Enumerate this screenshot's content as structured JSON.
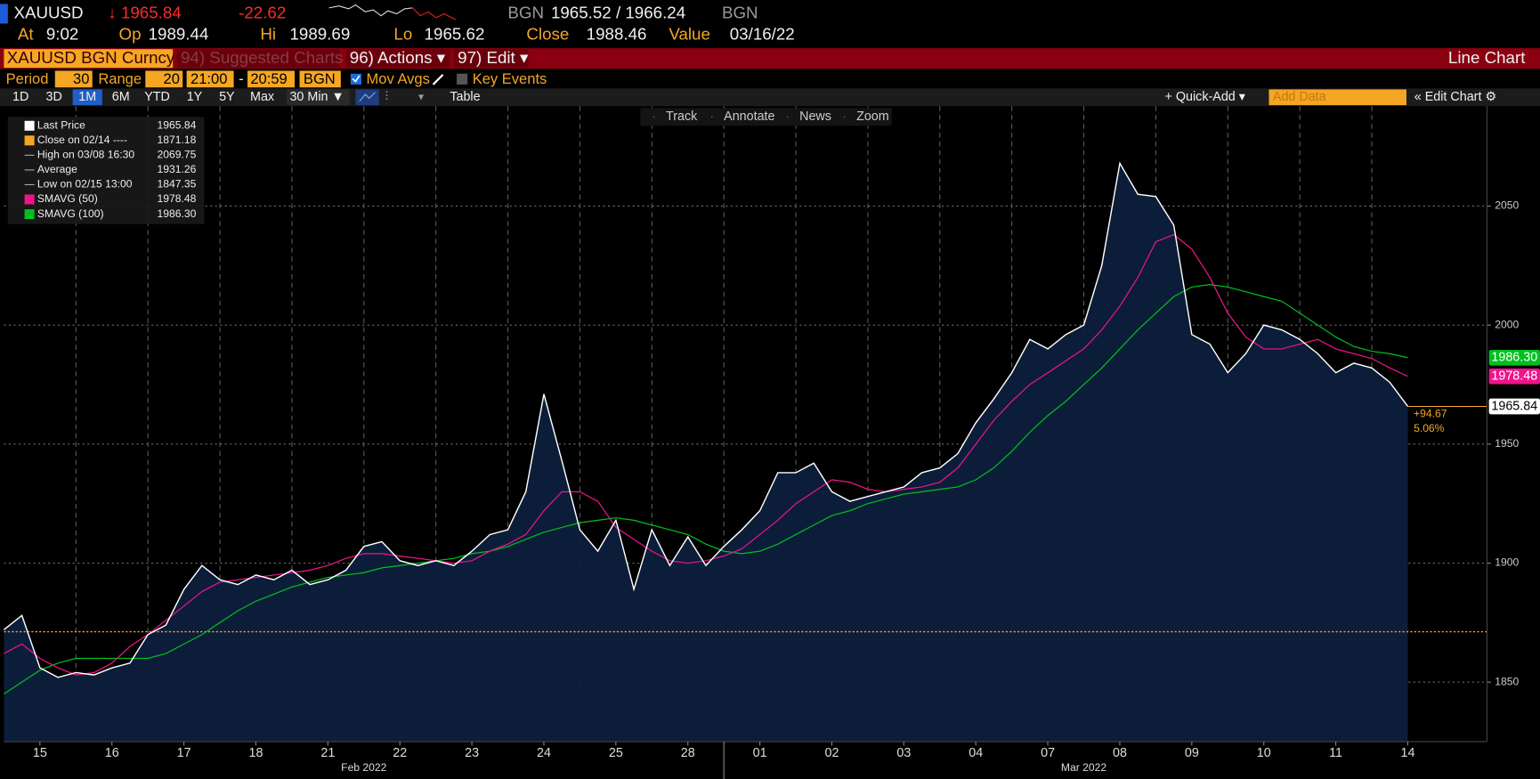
{
  "header": {
    "ticker": "XAUUSD",
    "last": "↓ 1965.84",
    "change": "-22.62",
    "source1": "BGN",
    "bid_ask": "1965.52 / 1966.24",
    "source2": "BGN",
    "stats": [
      {
        "label": "At",
        "value": "9:02"
      },
      {
        "label": "Op",
        "value": "1989.44"
      },
      {
        "label": "Hi",
        "value": "1989.69"
      },
      {
        "label": "Lo",
        "value": "1965.62"
      },
      {
        "label": "Close",
        "value": "1988.46"
      },
      {
        "label": "Value",
        "value": "03/16/22"
      }
    ]
  },
  "menu": {
    "security": "XAUUSD BGN Curncy",
    "suggested": "94) Suggested Charts",
    "actions": "96) Actions ▾",
    "edit": "97) Edit ▾",
    "chart_type": "Line Chart"
  },
  "settings": {
    "period_label": "Period",
    "period": "30",
    "range_label": "Range",
    "range": "20",
    "start": "21:00",
    "dash": "-",
    "end": "20:59",
    "source": "BGN",
    "mov_avgs": "Mov Avgs",
    "key_events": "Key Events"
  },
  "toolbar": {
    "ranges": [
      "1D",
      "3D",
      "1M",
      "6M",
      "YTD",
      "1Y",
      "5Y",
      "Max"
    ],
    "active_range": 2,
    "interval": "30 Min ▼",
    "table": "Table",
    "quick_add": "+ Quick-Add ▾",
    "add_data": "Add Data",
    "edit_chart": "« Edit Chart ⚙"
  },
  "chart_tools": [
    "Track",
    "Annotate",
    "News",
    "Zoom"
  ],
  "chart_data": {
    "type": "line",
    "x": [
      0,
      0.25,
      0.5,
      0.75,
      1,
      1.25,
      1.5,
      1.75,
      2,
      2.25,
      2.5,
      2.75,
      3,
      3.25,
      3.5,
      3.75,
      4,
      4.25,
      4.5,
      4.75,
      5,
      5.25,
      5.5,
      5.75,
      6,
      6.25,
      6.5,
      6.75,
      7,
      7.25,
      7.5,
      7.75,
      8,
      8.25,
      8.5,
      8.75,
      9,
      9.25,
      9.5,
      9.75,
      10,
      10.25,
      10.5,
      10.75,
      11,
      11.25,
      11.5,
      11.75,
      12,
      12.25,
      12.5,
      12.75,
      13,
      13.25,
      13.5,
      13.75,
      14,
      14.25,
      14.5,
      14.75,
      15,
      15.25,
      15.5,
      15.75,
      16,
      16.25,
      16.5,
      16.75,
      17,
      17.25,
      17.5,
      17.75,
      18,
      18.25,
      18.5,
      18.75,
      19,
      19.25,
      19.5
    ],
    "series": [
      {
        "name": "SMAVG (100)",
        "color": "#00c020",
        "tag": "1986.30",
        "values": [
          1845,
          1850,
          1855,
          1858,
          1860,
          1860,
          1860,
          1860,
          1860,
          1862,
          1866,
          1870,
          1875,
          1880,
          1884,
          1887,
          1890,
          1892,
          1894,
          1895,
          1896,
          1898,
          1899,
          1900,
          1901,
          1902,
          1904,
          1905,
          1907,
          1910,
          1913,
          1915,
          1917,
          1918,
          1919,
          1918,
          1916,
          1914,
          1912,
          1908,
          1905,
          1904,
          1905,
          1908,
          1912,
          1916,
          1920,
          1922,
          1925,
          1927,
          1929,
          1930,
          1931,
          1932,
          1935,
          1940,
          1947,
          1955,
          1962,
          1968,
          1975,
          1982,
          1990,
          1998,
          2005,
          2012,
          2016,
          2017,
          2016,
          2014,
          2012,
          2010,
          2005,
          2000,
          1995,
          1991,
          1989,
          1988,
          1986.3
        ]
      },
      {
        "name": "SMAVG (50)",
        "color": "#f0148c",
        "tag": "1978.48",
        "values": [
          1862,
          1866,
          1860,
          1856,
          1853,
          1854,
          1858,
          1865,
          1870,
          1876,
          1882,
          1888,
          1892,
          1893,
          1894,
          1895,
          1896,
          1897,
          1899,
          1902,
          1904,
          1904,
          1903,
          1902,
          1901,
          1900,
          1901,
          1905,
          1908,
          1912,
          1922,
          1930,
          1930,
          1926,
          1915,
          1910,
          1905,
          1901,
          1900,
          1901,
          1903,
          1906,
          1912,
          1918,
          1925,
          1930,
          1935,
          1934,
          1931,
          1930,
          1931,
          1932,
          1934,
          1940,
          1950,
          1960,
          1968,
          1975,
          1980,
          1985,
          1990,
          1998,
          2008,
          2020,
          2035,
          2038,
          2032,
          2020,
          2005,
          1995,
          1990,
          1990,
          1992,
          1994,
          1990,
          1988,
          1986,
          1982,
          1978.48
        ]
      },
      {
        "name": "Last Price",
        "color": "#ffffff",
        "area_color": "#0d1f3c",
        "tag": "1965.84",
        "values": [
          1872,
          1878,
          1856,
          1852,
          1854,
          1853,
          1856,
          1858,
          1870,
          1874,
          1889,
          1899,
          1893,
          1891,
          1895,
          1893,
          1897,
          1891,
          1893,
          1897,
          1907,
          1909,
          1901,
          1899,
          1901,
          1899,
          1905,
          1912,
          1914,
          1930,
          1971,
          1943,
          1914,
          1905,
          1918,
          1889,
          1914,
          1899,
          1911,
          1899,
          1907,
          1914,
          1922,
          1938,
          1938,
          1942,
          1930,
          1926,
          1928,
          1930,
          1932,
          1938,
          1940,
          1946,
          1959,
          1969,
          1980,
          1994,
          1990,
          1996,
          2000,
          2025,
          2068,
          2055,
          2054,
          2042,
          1996,
          1992,
          1980,
          1988,
          2000,
          1998,
          1994,
          1988,
          1980,
          1984,
          1982,
          1976,
          1965.84
        ]
      }
    ],
    "xlim": [
      0,
      20.6
    ],
    "ylim": [
      1825,
      2092
    ],
    "yticks": [
      1850,
      1900,
      1950,
      2000,
      2050
    ],
    "xticks": [
      {
        "value": 0.5,
        "label": "15"
      },
      {
        "value": 1.5,
        "label": "16"
      },
      {
        "value": 2.5,
        "label": "17"
      },
      {
        "value": 3.5,
        "label": "18"
      },
      {
        "value": 4.5,
        "label": "21"
      },
      {
        "value": 5.5,
        "label": "22"
      },
      {
        "value": 6.5,
        "label": "23"
      },
      {
        "value": 7.5,
        "label": "24"
      },
      {
        "value": 8.5,
        "label": "25"
      },
      {
        "value": 9.5,
        "label": "28"
      },
      {
        "value": 10.5,
        "label": "01"
      },
      {
        "value": 11.5,
        "label": "02"
      },
      {
        "value": 12.5,
        "label": "03"
      },
      {
        "value": 13.5,
        "label": "04"
      },
      {
        "value": 14.5,
        "label": "07"
      },
      {
        "value": 15.5,
        "label": "08"
      },
      {
        "value": 16.5,
        "label": "09"
      },
      {
        "value": 17.5,
        "label": "10"
      },
      {
        "value": 18.5,
        "label": "11"
      },
      {
        "value": 19.5,
        "label": "14"
      }
    ],
    "xgrid": [
      1,
      2,
      3,
      4,
      5,
      6,
      7,
      8,
      9,
      10,
      11,
      12,
      13,
      14,
      15,
      16,
      17,
      18,
      19
    ],
    "month_break": 10,
    "x_groups": [
      {
        "label": "Feb 2022",
        "from": 0,
        "to": 10
      },
      {
        "label": "Mar 2022",
        "from": 10,
        "to": 20
      }
    ],
    "grid": true,
    "reference_line": {
      "value": 1871.18,
      "color": "#f5a623"
    },
    "change": "+94.67",
    "change_pct": "5.06%",
    "legend_position": "upper left",
    "legend": [
      {
        "label": "Last Price",
        "value": "1965.84",
        "color": "#ffffff"
      },
      {
        "label": "Close on 02/14 ----",
        "value": "1871.18",
        "color": "#f5a623"
      },
      {
        "label": "High on 03/08 16:30",
        "value": "2069.75"
      },
      {
        "label": "Average",
        "value": "1931.26"
      },
      {
        "label": "Low on 02/15 13:00",
        "value": "1847.35"
      },
      {
        "label": "SMAVG (50)",
        "value": "1978.48",
        "color": "#f0148c"
      },
      {
        "label": "SMAVG (100)",
        "value": "1986.30",
        "color": "#00c020"
      }
    ]
  }
}
